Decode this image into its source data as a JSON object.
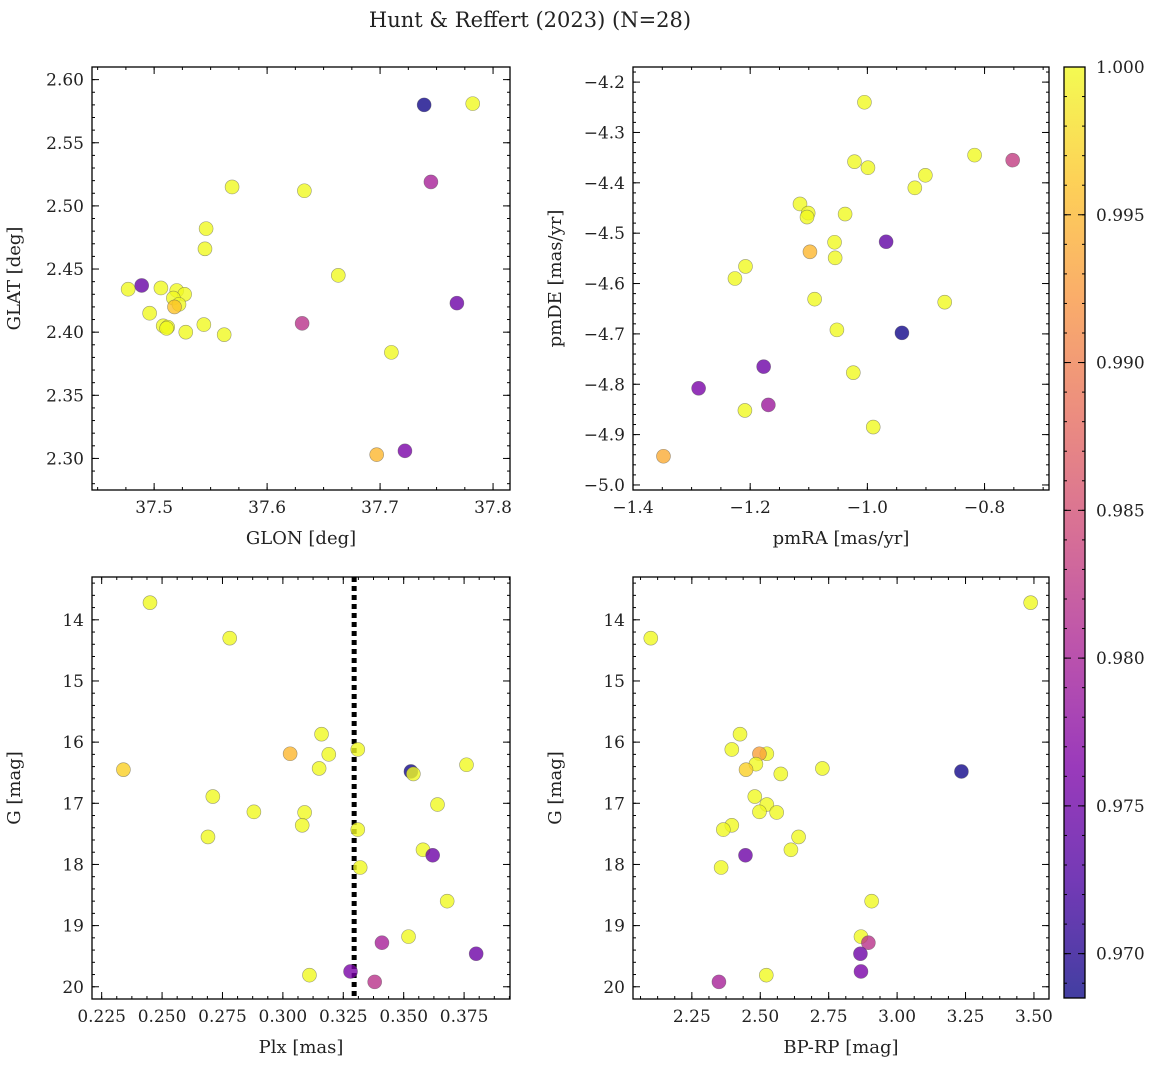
{
  "chart_data": {
    "title": "Hunt & Reffert (2023) (N=28)",
    "colormap": "plasma",
    "colorbar": {
      "range": [
        0.9685,
        1.0
      ],
      "ticks": [
        0.97,
        0.975,
        0.98,
        0.985,
        0.99,
        0.995,
        1.0
      ],
      "tick_labels": [
        "0.970",
        "0.975",
        "0.980",
        "0.985",
        "0.990",
        "0.995",
        "1.000"
      ]
    },
    "panels": [
      {
        "id": "glon-glat",
        "type": "scatter",
        "xlabel": "GLON [deg]",
        "ylabel": "GLAT [deg]",
        "xlim": [
          37.445,
          37.815
        ],
        "ylim": [
          2.275,
          2.61
        ],
        "yinvert": false,
        "xticks": [
          37.5,
          37.6,
          37.7,
          37.8
        ],
        "xtick_labels": [
          "37.5",
          "37.6",
          "37.7",
          "37.8"
        ],
        "yticks": [
          2.3,
          2.35,
          2.4,
          2.45,
          2.5,
          2.55,
          2.6
        ],
        "ytick_labels": [
          "2.30",
          "2.35",
          "2.40",
          "2.45",
          "2.50",
          "2.55",
          "2.60"
        ],
        "points": [
          {
            "x": 37.739,
            "y": 2.58,
            "p": 0.9688
          },
          {
            "x": 37.782,
            "y": 2.581,
            "p": 1.0
          },
          {
            "x": 37.745,
            "y": 2.519,
            "p": 0.98
          },
          {
            "x": 37.569,
            "y": 2.515,
            "p": 1.0
          },
          {
            "x": 37.633,
            "y": 2.512,
            "p": 1.0
          },
          {
            "x": 37.546,
            "y": 2.482,
            "p": 1.0
          },
          {
            "x": 37.545,
            "y": 2.466,
            "p": 1.0
          },
          {
            "x": 37.663,
            "y": 2.445,
            "p": 1.0
          },
          {
            "x": 37.477,
            "y": 2.434,
            "p": 1.0
          },
          {
            "x": 37.489,
            "y": 2.437,
            "p": 0.9745
          },
          {
            "x": 37.506,
            "y": 2.435,
            "p": 1.0
          },
          {
            "x": 37.52,
            "y": 2.433,
            "p": 1.0
          },
          {
            "x": 37.527,
            "y": 2.43,
            "p": 1.0
          },
          {
            "x": 37.517,
            "y": 2.427,
            "p": 1.0
          },
          {
            "x": 37.522,
            "y": 2.422,
            "p": 1.0
          },
          {
            "x": 37.518,
            "y": 2.42,
            "p": 0.996
          },
          {
            "x": 37.768,
            "y": 2.423,
            "p": 0.975
          },
          {
            "x": 37.496,
            "y": 2.415,
            "p": 1.0
          },
          {
            "x": 37.508,
            "y": 2.405,
            "p": 1.0
          },
          {
            "x": 37.512,
            "y": 2.404,
            "p": 1.0
          },
          {
            "x": 37.544,
            "y": 2.406,
            "p": 1.0
          },
          {
            "x": 37.631,
            "y": 2.407,
            "p": 0.982
          },
          {
            "x": 37.528,
            "y": 2.4,
            "p": 1.0
          },
          {
            "x": 37.562,
            "y": 2.398,
            "p": 1.0
          },
          {
            "x": 37.71,
            "y": 2.384,
            "p": 1.0
          },
          {
            "x": 37.697,
            "y": 2.303,
            "p": 0.995
          },
          {
            "x": 37.722,
            "y": 2.306,
            "p": 0.976
          },
          {
            "x": 37.511,
            "y": 2.403,
            "p": 1.0
          }
        ]
      },
      {
        "id": "pmra-pmde",
        "type": "scatter",
        "xlabel": "pmRA [mas/yr]",
        "ylabel": "pmDE [mas/yr]",
        "xlim": [
          -1.4,
          -0.69
        ],
        "ylim": [
          -5.01,
          -4.17
        ],
        "yinvert": false,
        "xticks": [
          -1.4,
          -1.2,
          -1.0,
          -0.8
        ],
        "xtick_labels": [
          "−1.4",
          "−1.2",
          "−1.0",
          "−0.8"
        ],
        "yticks": [
          -5.0,
          -4.9,
          -4.8,
          -4.7,
          -4.6,
          -4.5,
          -4.4,
          -4.3,
          -4.2
        ],
        "ytick_labels": [
          "−5.0",
          "−4.9",
          "−4.8",
          "−4.7",
          "−4.6",
          "−4.5",
          "−4.4",
          "−4.3",
          "−4.2"
        ],
        "points": [
          {
            "x": -1.005,
            "y": -4.24,
            "p": 1.0
          },
          {
            "x": -0.817,
            "y": -4.345,
            "p": 1.0
          },
          {
            "x": -0.752,
            "y": -4.355,
            "p": 0.983
          },
          {
            "x": -1.022,
            "y": -4.358,
            "p": 1.0
          },
          {
            "x": -0.999,
            "y": -4.37,
            "p": 1.0
          },
          {
            "x": -0.901,
            "y": -4.385,
            "p": 1.0
          },
          {
            "x": -0.919,
            "y": -4.41,
            "p": 1.0
          },
          {
            "x": -1.115,
            "y": -4.442,
            "p": 1.0
          },
          {
            "x": -1.101,
            "y": -4.46,
            "p": 1.0
          },
          {
            "x": -1.038,
            "y": -4.462,
            "p": 1.0
          },
          {
            "x": -1.103,
            "y": -4.468,
            "p": 1.0
          },
          {
            "x": -1.056,
            "y": -4.518,
            "p": 1.0
          },
          {
            "x": -0.968,
            "y": -4.517,
            "p": 0.974
          },
          {
            "x": -1.098,
            "y": -4.537,
            "p": 0.995
          },
          {
            "x": -1.055,
            "y": -4.549,
            "p": 1.0
          },
          {
            "x": -1.208,
            "y": -4.566,
            "p": 1.0
          },
          {
            "x": -1.226,
            "y": -4.59,
            "p": 1.0
          },
          {
            "x": -1.09,
            "y": -4.631,
            "p": 1.0
          },
          {
            "x": -0.868,
            "y": -4.637,
            "p": 1.0
          },
          {
            "x": -1.052,
            "y": -4.692,
            "p": 1.0
          },
          {
            "x": -0.941,
            "y": -4.698,
            "p": 0.9688
          },
          {
            "x": -1.177,
            "y": -4.765,
            "p": 0.975
          },
          {
            "x": -1.024,
            "y": -4.777,
            "p": 1.0
          },
          {
            "x": -1.288,
            "y": -4.808,
            "p": 0.976
          },
          {
            "x": -1.169,
            "y": -4.841,
            "p": 0.979
          },
          {
            "x": -1.209,
            "y": -4.852,
            "p": 1.0
          },
          {
            "x": -0.99,
            "y": -4.885,
            "p": 1.0
          },
          {
            "x": -1.348,
            "y": -4.943,
            "p": 0.994
          }
        ]
      },
      {
        "id": "plx-g",
        "type": "scatter",
        "xlabel": "Plx [mas]",
        "ylabel": "G [mag]",
        "xlim": [
          0.221,
          0.394
        ],
        "ylim": [
          13.3,
          20.2
        ],
        "yinvert": true,
        "xticks": [
          0.225,
          0.25,
          0.275,
          0.3,
          0.325,
          0.35,
          0.375
        ],
        "xtick_labels": [
          "0.225",
          "0.250",
          "0.275",
          "0.300",
          "0.325",
          "0.350",
          "0.375"
        ],
        "yticks": [
          14,
          15,
          16,
          17,
          18,
          19,
          20
        ],
        "ytick_labels": [
          "14",
          "15",
          "16",
          "17",
          "18",
          "19",
          "20"
        ],
        "vline": {
          "x": 0.3295,
          "style": "dotted",
          "color": "#000000"
        },
        "points": [
          {
            "x": 0.245,
            "y": 13.72,
            "p": 1.0
          },
          {
            "x": 0.278,
            "y": 14.3,
            "p": 1.0
          },
          {
            "x": 0.316,
            "y": 15.87,
            "p": 1.0
          },
          {
            "x": 0.331,
            "y": 16.12,
            "p": 1.0
          },
          {
            "x": 0.319,
            "y": 16.2,
            "p": 1.0
          },
          {
            "x": 0.303,
            "y": 16.19,
            "p": 0.995
          },
          {
            "x": 0.376,
            "y": 16.37,
            "p": 1.0
          },
          {
            "x": 0.315,
            "y": 16.43,
            "p": 1.0
          },
          {
            "x": 0.234,
            "y": 16.45,
            "p": 0.997
          },
          {
            "x": 0.353,
            "y": 16.48,
            "p": 0.9688
          },
          {
            "x": 0.354,
            "y": 16.52,
            "p": 1.0
          },
          {
            "x": 0.271,
            "y": 16.89,
            "p": 1.0
          },
          {
            "x": 0.364,
            "y": 17.02,
            "p": 1.0
          },
          {
            "x": 0.288,
            "y": 17.14,
            "p": 1.0
          },
          {
            "x": 0.309,
            "y": 17.15,
            "p": 1.0
          },
          {
            "x": 0.308,
            "y": 17.36,
            "p": 1.0
          },
          {
            "x": 0.331,
            "y": 17.43,
            "p": 1.0
          },
          {
            "x": 0.269,
            "y": 17.55,
            "p": 1.0
          },
          {
            "x": 0.358,
            "y": 17.76,
            "p": 1.0
          },
          {
            "x": 0.362,
            "y": 17.85,
            "p": 0.975
          },
          {
            "x": 0.332,
            "y": 18.05,
            "p": 1.0
          },
          {
            "x": 0.368,
            "y": 18.6,
            "p": 1.0
          },
          {
            "x": 0.352,
            "y": 19.18,
            "p": 1.0
          },
          {
            "x": 0.341,
            "y": 19.28,
            "p": 0.98
          },
          {
            "x": 0.38,
            "y": 19.46,
            "p": 0.975
          },
          {
            "x": 0.328,
            "y": 19.75,
            "p": 0.976
          },
          {
            "x": 0.311,
            "y": 19.81,
            "p": 1.0
          },
          {
            "x": 0.338,
            "y": 19.92,
            "p": 0.982
          }
        ]
      },
      {
        "id": "bprp-g",
        "type": "scatter",
        "xlabel": "BP-RP [mag]",
        "ylabel": "G [mag]",
        "xlim": [
          2.035,
          3.555
        ],
        "ylim": [
          13.3,
          20.2
        ],
        "yinvert": true,
        "xticks": [
          2.25,
          2.5,
          2.75,
          3.0,
          3.25,
          3.5
        ],
        "xtick_labels": [
          "2.25",
          "2.50",
          "2.75",
          "3.00",
          "3.25",
          "3.50"
        ],
        "yticks": [
          14,
          15,
          16,
          17,
          18,
          19,
          20
        ],
        "ytick_labels": [
          "14",
          "15",
          "16",
          "17",
          "18",
          "19",
          "20"
        ],
        "points": [
          {
            "x": 3.488,
            "y": 13.72,
            "p": 1.0
          },
          {
            "x": 2.1,
            "y": 14.3,
            "p": 1.0
          },
          {
            "x": 2.426,
            "y": 15.87,
            "p": 1.0
          },
          {
            "x": 2.396,
            "y": 16.12,
            "p": 1.0
          },
          {
            "x": 2.524,
            "y": 16.19,
            "p": 1.0
          },
          {
            "x": 2.497,
            "y": 16.19,
            "p": 0.993
          },
          {
            "x": 2.484,
            "y": 16.36,
            "p": 1.0
          },
          {
            "x": 2.727,
            "y": 16.43,
            "p": 1.0
          },
          {
            "x": 2.448,
            "y": 16.45,
            "p": 0.997
          },
          {
            "x": 3.235,
            "y": 16.48,
            "p": 0.9688
          },
          {
            "x": 2.575,
            "y": 16.52,
            "p": 1.0
          },
          {
            "x": 2.48,
            "y": 16.89,
            "p": 1.0
          },
          {
            "x": 2.524,
            "y": 17.02,
            "p": 1.0
          },
          {
            "x": 2.497,
            "y": 17.14,
            "p": 1.0
          },
          {
            "x": 2.56,
            "y": 17.15,
            "p": 1.0
          },
          {
            "x": 2.396,
            "y": 17.36,
            "p": 1.0
          },
          {
            "x": 2.365,
            "y": 17.43,
            "p": 1.0
          },
          {
            "x": 2.64,
            "y": 17.55,
            "p": 1.0
          },
          {
            "x": 2.612,
            "y": 17.76,
            "p": 1.0
          },
          {
            "x": 2.446,
            "y": 17.85,
            "p": 0.975
          },
          {
            "x": 2.357,
            "y": 18.05,
            "p": 1.0
          },
          {
            "x": 2.907,
            "y": 18.6,
            "p": 1.0
          },
          {
            "x": 2.868,
            "y": 19.18,
            "p": 1.0
          },
          {
            "x": 2.895,
            "y": 19.28,
            "p": 0.982
          },
          {
            "x": 2.866,
            "y": 19.46,
            "p": 0.975
          },
          {
            "x": 2.868,
            "y": 19.75,
            "p": 0.976
          },
          {
            "x": 2.522,
            "y": 19.81,
            "p": 1.0
          },
          {
            "x": 2.349,
            "y": 19.92,
            "p": 0.98
          }
        ]
      }
    ]
  }
}
